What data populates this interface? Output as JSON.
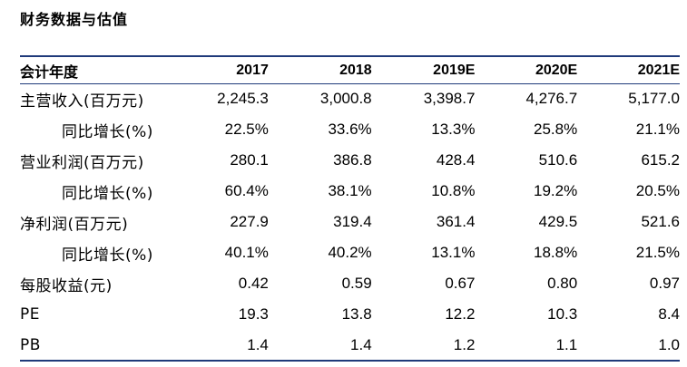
{
  "page_title": "财务数据与估值",
  "table": {
    "header_label": "会计年度",
    "years": [
      "2017",
      "2018",
      "2019E",
      "2020E",
      "2021E"
    ],
    "rows": [
      {
        "label": "主营收入(百万元)",
        "indent": false,
        "values": [
          "2,245.3",
          "3,000.8",
          "3,398.7",
          "4,276.7",
          "5,177.0"
        ]
      },
      {
        "label": "同比增长(%)",
        "indent": true,
        "values": [
          "22.5%",
          "33.6%",
          "13.3%",
          "25.8%",
          "21.1%"
        ]
      },
      {
        "label": "营业利润(百万元)",
        "indent": false,
        "values": [
          "280.1",
          "386.8",
          "428.4",
          "510.6",
          "615.2"
        ]
      },
      {
        "label": "同比增长(%)",
        "indent": true,
        "values": [
          "60.4%",
          "38.1%",
          "10.8%",
          "19.2%",
          "20.5%"
        ]
      },
      {
        "label": "净利润(百万元)",
        "indent": false,
        "values": [
          "227.9",
          "319.4",
          "361.4",
          "429.5",
          "521.6"
        ]
      },
      {
        "label": "同比增长(%)",
        "indent": true,
        "values": [
          "40.1%",
          "40.2%",
          "13.1%",
          "18.8%",
          "21.5%"
        ]
      },
      {
        "label": "每股收益(元)",
        "indent": false,
        "values": [
          "0.42",
          "0.59",
          "0.67",
          "0.80",
          "0.97"
        ]
      },
      {
        "label": "PE",
        "indent": false,
        "values": [
          "19.3",
          "13.8",
          "12.2",
          "10.3",
          "8.4"
        ]
      },
      {
        "label": "PB",
        "indent": false,
        "values": [
          "1.4",
          "1.4",
          "1.2",
          "1.1",
          "1.0"
        ]
      }
    ]
  },
  "colors": {
    "rule": "#1f3a7a",
    "text": "#000000"
  }
}
